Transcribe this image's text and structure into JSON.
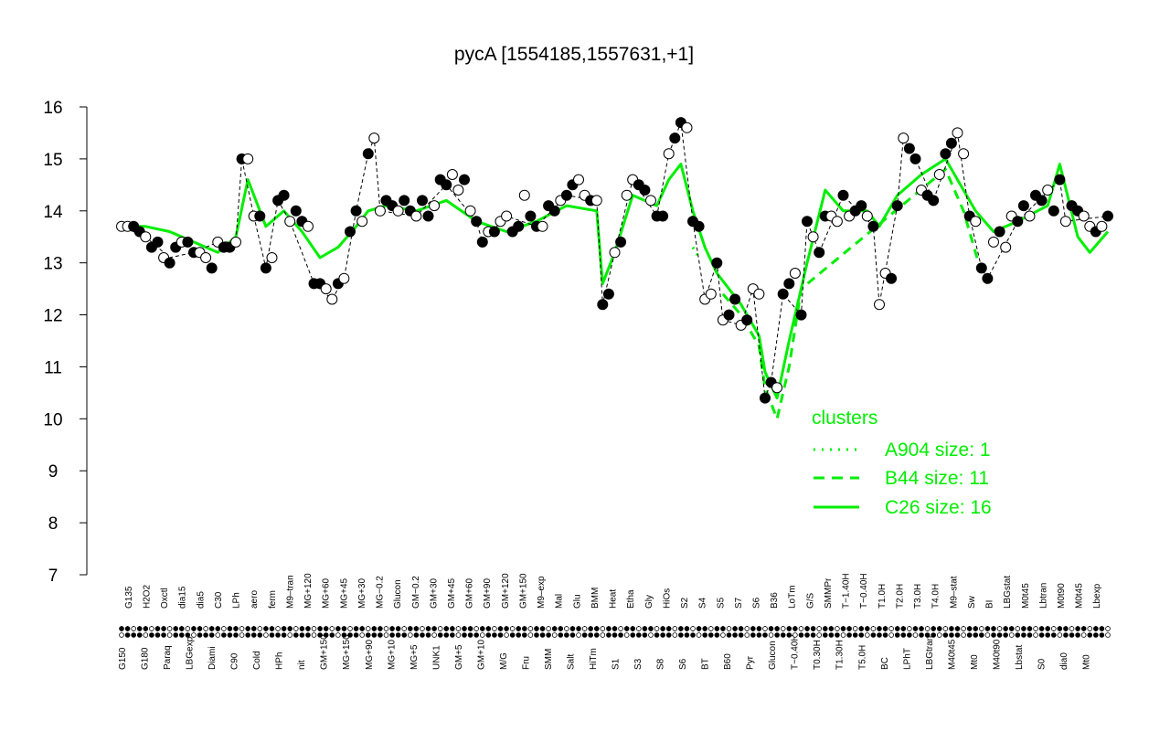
{
  "chart_data": {
    "type": "line",
    "title": "pycA [1554185,1557631,+1]",
    "xlabel": "",
    "ylabel": "",
    "ylim": [
      7,
      16
    ],
    "yticks": [
      7,
      8,
      9,
      10,
      11,
      12,
      13,
      14,
      15,
      16
    ],
    "grid": false,
    "x_labels_upper": [
      "G135",
      "H2O2",
      "Oxctl",
      "dia15",
      "dia5",
      "C30",
      "LPh",
      "aero",
      "ferm",
      "M9–tran",
      "MG+120",
      "MG+60",
      "MG+45",
      "MG+30",
      "MG−0.2",
      "Glucon",
      "GM−0.2",
      "GM+30",
      "GM+45",
      "GM+60",
      "GM+90",
      "GM+120",
      "GM+150",
      "M9–exp",
      "Mal",
      "Glu",
      "BMM",
      "Heat",
      "Etha",
      "Gly",
      "HiOs",
      "S2",
      "S4",
      "S5",
      "S7",
      "S6",
      "B36",
      "LoTm",
      "G/S",
      "SMMPr",
      "T−1.40H",
      "T−0.40H",
      "T1.0H",
      "T2.0H",
      "T3.0H",
      "T4.0H",
      "M9–stat",
      "Sw",
      "BI",
      "LBGstat",
      "M0t45",
      "Lbtran",
      "M0t90",
      "M0t45",
      "Lbexp"
    ],
    "x_labels_lower": [
      "G150",
      "G180",
      "Paraq",
      "LBGexp",
      "Diami",
      "C90",
      "Cold",
      "HPh",
      "nit",
      "GM+150",
      "MG+150",
      "MG+90",
      "MG+10",
      "MG+5",
      "UNK1",
      "GM+5",
      "GM+10",
      "M/G",
      "Fru",
      "SMM",
      "Salt",
      "HiTm",
      "S1",
      "S3",
      "S8",
      "S6",
      "BT",
      "B60",
      "Pyr",
      "Glucon",
      "T−0.40H",
      "T0.30H",
      "T1.30H",
      "T5.0H",
      "BC",
      "LPhT",
      "LBGtran",
      "M40t45",
      "Mt0",
      "M40t90",
      "Lbstat",
      "S0",
      "dia0",
      "Mt0"
    ],
    "series": [
      {
        "name": "",
        "style": "points",
        "markers": "filled and open circles",
        "points": [
          [
            1,
            13.7
          ],
          [
            2,
            13.7
          ],
          [
            3,
            13.7
          ],
          [
            4,
            13.6
          ],
          [
            5,
            13.5
          ],
          [
            6,
            13.3
          ],
          [
            7,
            13.4
          ],
          [
            8,
            13.1
          ],
          [
            9,
            13.0
          ],
          [
            10,
            13.3
          ],
          [
            11,
            13.4
          ],
          [
            12,
            13.4
          ],
          [
            13,
            13.2
          ],
          [
            14,
            13.2
          ],
          [
            15,
            13.1
          ],
          [
            16,
            12.9
          ],
          [
            17,
            13.4
          ],
          [
            18,
            13.3
          ],
          [
            19,
            13.3
          ],
          [
            20,
            13.4
          ],
          [
            21,
            15.0
          ],
          [
            22,
            15.0
          ],
          [
            23,
            13.9
          ],
          [
            24,
            13.9
          ],
          [
            25,
            12.9
          ],
          [
            26,
            13.1
          ],
          [
            27,
            14.2
          ],
          [
            28,
            14.3
          ],
          [
            29,
            13.8
          ],
          [
            30,
            14.0
          ],
          [
            31,
            13.8
          ],
          [
            32,
            13.7
          ],
          [
            33,
            12.6
          ],
          [
            34,
            12.6
          ],
          [
            35,
            12.5
          ],
          [
            36,
            12.3
          ],
          [
            37,
            12.6
          ],
          [
            38,
            12.7
          ],
          [
            39,
            13.6
          ],
          [
            40,
            14.0
          ],
          [
            41,
            13.8
          ],
          [
            42,
            15.1
          ],
          [
            43,
            15.4
          ],
          [
            44,
            14.0
          ],
          [
            45,
            14.2
          ],
          [
            46,
            14.1
          ],
          [
            47,
            14.0
          ],
          [
            48,
            14.2
          ],
          [
            49,
            14.0
          ],
          [
            50,
            13.9
          ],
          [
            51,
            14.2
          ],
          [
            52,
            13.9
          ],
          [
            53,
            14.1
          ],
          [
            54,
            14.6
          ],
          [
            55,
            14.5
          ],
          [
            56,
            14.7
          ],
          [
            57,
            14.4
          ],
          [
            58,
            14.6
          ],
          [
            59,
            14.0
          ],
          [
            60,
            13.8
          ],
          [
            61,
            13.4
          ],
          [
            62,
            13.6
          ],
          [
            63,
            13.6
          ],
          [
            64,
            13.8
          ],
          [
            65,
            13.9
          ],
          [
            66,
            13.6
          ],
          [
            67,
            13.7
          ],
          [
            68,
            14.3
          ],
          [
            69,
            13.9
          ],
          [
            70,
            13.7
          ],
          [
            71,
            13.7
          ],
          [
            72,
            14.1
          ],
          [
            73,
            14.0
          ],
          [
            74,
            14.2
          ],
          [
            75,
            14.3
          ],
          [
            76,
            14.5
          ],
          [
            77,
            14.6
          ],
          [
            78,
            14.3
          ],
          [
            79,
            14.2
          ],
          [
            80,
            14.2
          ],
          [
            81,
            12.2
          ],
          [
            82,
            12.4
          ],
          [
            83,
            13.2
          ],
          [
            84,
            13.4
          ],
          [
            85,
            14.3
          ],
          [
            86,
            14.6
          ],
          [
            87,
            14.5
          ],
          [
            88,
            14.4
          ],
          [
            89,
            14.2
          ],
          [
            90,
            13.9
          ],
          [
            91,
            13.9
          ],
          [
            92,
            15.1
          ],
          [
            93,
            15.4
          ],
          [
            94,
            15.7
          ],
          [
            95,
            15.6
          ],
          [
            96,
            13.8
          ],
          [
            97,
            13.7
          ],
          [
            98,
            12.3
          ],
          [
            99,
            12.4
          ],
          [
            100,
            13.0
          ],
          [
            101,
            11.9
          ],
          [
            102,
            12.0
          ],
          [
            103,
            12.3
          ],
          [
            104,
            11.8
          ],
          [
            105,
            11.9
          ],
          [
            106,
            12.5
          ],
          [
            107,
            12.4
          ],
          [
            108,
            10.4
          ],
          [
            109,
            10.7
          ],
          [
            110,
            10.6
          ],
          [
            111,
            12.4
          ],
          [
            112,
            12.6
          ],
          [
            113,
            12.8
          ],
          [
            114,
            12.0
          ],
          [
            115,
            13.8
          ],
          [
            116,
            13.5
          ],
          [
            117,
            13.2
          ],
          [
            118,
            13.9
          ],
          [
            119,
            13.9
          ],
          [
            120,
            13.8
          ],
          [
            121,
            14.3
          ],
          [
            122,
            13.9
          ],
          [
            123,
            14.0
          ],
          [
            124,
            14.1
          ],
          [
            125,
            13.9
          ],
          [
            126,
            13.7
          ],
          [
            127,
            12.2
          ],
          [
            128,
            12.8
          ],
          [
            129,
            12.7
          ],
          [
            130,
            14.1
          ],
          [
            131,
            15.4
          ],
          [
            132,
            15.2
          ],
          [
            133,
            15.0
          ],
          [
            134,
            14.4
          ],
          [
            135,
            14.3
          ],
          [
            136,
            14.2
          ],
          [
            137,
            14.7
          ],
          [
            138,
            15.1
          ],
          [
            139,
            15.3
          ],
          [
            140,
            15.5
          ],
          [
            141,
            15.1
          ],
          [
            142,
            13.9
          ],
          [
            143,
            13.8
          ],
          [
            144,
            12.9
          ],
          [
            145,
            12.7
          ],
          [
            146,
            13.4
          ],
          [
            147,
            13.6
          ],
          [
            148,
            13.3
          ],
          [
            149,
            13.9
          ],
          [
            150,
            13.8
          ],
          [
            151,
            14.1
          ],
          [
            152,
            13.9
          ],
          [
            153,
            14.3
          ],
          [
            154,
            14.2
          ],
          [
            155,
            14.4
          ],
          [
            156,
            14.0
          ],
          [
            157,
            14.6
          ],
          [
            158,
            13.8
          ],
          [
            159,
            14.1
          ],
          [
            160,
            14.0
          ],
          [
            161,
            13.9
          ],
          [
            162,
            13.7
          ],
          [
            163,
            13.6
          ],
          [
            164,
            13.7
          ],
          [
            165,
            13.9
          ]
        ]
      },
      {
        "name": "C26",
        "style": "solid",
        "points": [
          [
            1,
            13.7
          ],
          [
            5,
            13.7
          ],
          [
            9,
            13.6
          ],
          [
            13,
            13.4
          ],
          [
            17,
            13.2
          ],
          [
            20,
            13.5
          ],
          [
            22,
            14.6
          ],
          [
            25,
            13.7
          ],
          [
            28,
            14.0
          ],
          [
            31,
            13.6
          ],
          [
            34,
            13.1
          ],
          [
            37,
            13.3
          ],
          [
            40,
            13.7
          ],
          [
            42,
            14.0
          ],
          [
            45,
            14.1
          ],
          [
            50,
            14.0
          ],
          [
            55,
            14.2
          ],
          [
            60,
            13.8
          ],
          [
            65,
            13.6
          ],
          [
            70,
            13.8
          ],
          [
            75,
            14.1
          ],
          [
            80,
            14.0
          ],
          [
            81,
            12.6
          ],
          [
            83,
            13.2
          ],
          [
            86,
            14.3
          ],
          [
            90,
            14.1
          ],
          [
            92,
            14.6
          ],
          [
            94,
            14.9
          ],
          [
            96,
            14.0
          ],
          [
            98,
            13.3
          ],
          [
            100,
            12.8
          ],
          [
            104,
            12.2
          ],
          [
            107,
            11.6
          ],
          [
            108,
            10.9
          ],
          [
            110,
            10.4
          ],
          [
            112,
            11.5
          ],
          [
            115,
            13.0
          ],
          [
            118,
            14.4
          ],
          [
            121,
            14.0
          ],
          [
            125,
            14.0
          ],
          [
            127,
            13.7
          ],
          [
            130,
            14.3
          ],
          [
            134,
            14.7
          ],
          [
            138,
            15.0
          ],
          [
            140,
            14.6
          ],
          [
            143,
            14.0
          ],
          [
            146,
            13.6
          ],
          [
            150,
            13.8
          ],
          [
            155,
            14.1
          ],
          [
            157,
            14.9
          ],
          [
            160,
            13.5
          ],
          [
            162,
            13.2
          ],
          [
            165,
            13.6
          ]
        ]
      },
      {
        "name": "B44",
        "style": "dashed",
        "points": [
          [
            101,
            12.4
          ],
          [
            104,
            12.0
          ],
          [
            107,
            11.4
          ],
          [
            108,
            10.6
          ],
          [
            110,
            10.0
          ],
          [
            112,
            11.0
          ],
          [
            114,
            12.5
          ],
          [
            138,
            14.8
          ],
          [
            141,
            14.0
          ],
          [
            144,
            12.8
          ],
          [
            145,
            12.6
          ]
        ]
      },
      {
        "name": "A904",
        "style": "dotted",
        "points": [
          [
            96,
            13.3
          ],
          [
            97,
            13.1
          ]
        ]
      },
      {
        "name": "",
        "style": "dashed-black",
        "points": [
          [
            1,
            13.7
          ],
          [
            5,
            13.5
          ],
          [
            9,
            13.1
          ],
          [
            13,
            13.2
          ],
          [
            17,
            13.4
          ],
          [
            20,
            13.4
          ],
          [
            21,
            15.0
          ],
          [
            23,
            13.9
          ],
          [
            25,
            12.9
          ],
          [
            27,
            14.2
          ],
          [
            29,
            13.8
          ],
          [
            33,
            12.6
          ],
          [
            36,
            12.3
          ],
          [
            38,
            12.7
          ],
          [
            40,
            14.0
          ],
          [
            42,
            15.1
          ],
          [
            43,
            15.4
          ],
          [
            44,
            14.0
          ],
          [
            50,
            13.9
          ],
          [
            55,
            14.5
          ],
          [
            60,
            13.8
          ],
          [
            61,
            13.4
          ],
          [
            65,
            13.9
          ],
          [
            70,
            13.7
          ],
          [
            75,
            14.3
          ],
          [
            80,
            14.2
          ],
          [
            81,
            12.2
          ],
          [
            83,
            13.2
          ],
          [
            86,
            14.6
          ],
          [
            90,
            13.9
          ],
          [
            92,
            15.1
          ],
          [
            94,
            15.7
          ],
          [
            96,
            13.8
          ],
          [
            98,
            12.3
          ],
          [
            100,
            13.0
          ],
          [
            101,
            11.9
          ],
          [
            104,
            11.8
          ],
          [
            106,
            12.5
          ],
          [
            108,
            10.4
          ],
          [
            109,
            10.7
          ],
          [
            111,
            12.4
          ],
          [
            114,
            12.0
          ],
          [
            115,
            13.8
          ],
          [
            117,
            13.2
          ],
          [
            121,
            14.3
          ],
          [
            126,
            13.7
          ],
          [
            127,
            12.2
          ],
          [
            130,
            14.1
          ],
          [
            131,
            15.4
          ],
          [
            133,
            15.0
          ],
          [
            136,
            14.2
          ],
          [
            140,
            15.5
          ],
          [
            142,
            13.9
          ],
          [
            144,
            12.9
          ],
          [
            145,
            12.7
          ],
          [
            150,
            13.8
          ],
          [
            157,
            14.6
          ],
          [
            158,
            13.8
          ],
          [
            165,
            13.9
          ]
        ]
      }
    ],
    "legend": {
      "placement": "bottom-right",
      "title": "clusters",
      "entries": [
        {
          "label": "A904 size: 1",
          "style": "dotted"
        },
        {
          "label": "B44 size: 11",
          "style": "dashed"
        },
        {
          "label": "C26 size: 16",
          "style": "solid"
        }
      ]
    },
    "colors": {
      "cluster": "#00ee00",
      "points_fill": "#000000",
      "points_open": "#ffffff",
      "axis": "#000000"
    }
  }
}
